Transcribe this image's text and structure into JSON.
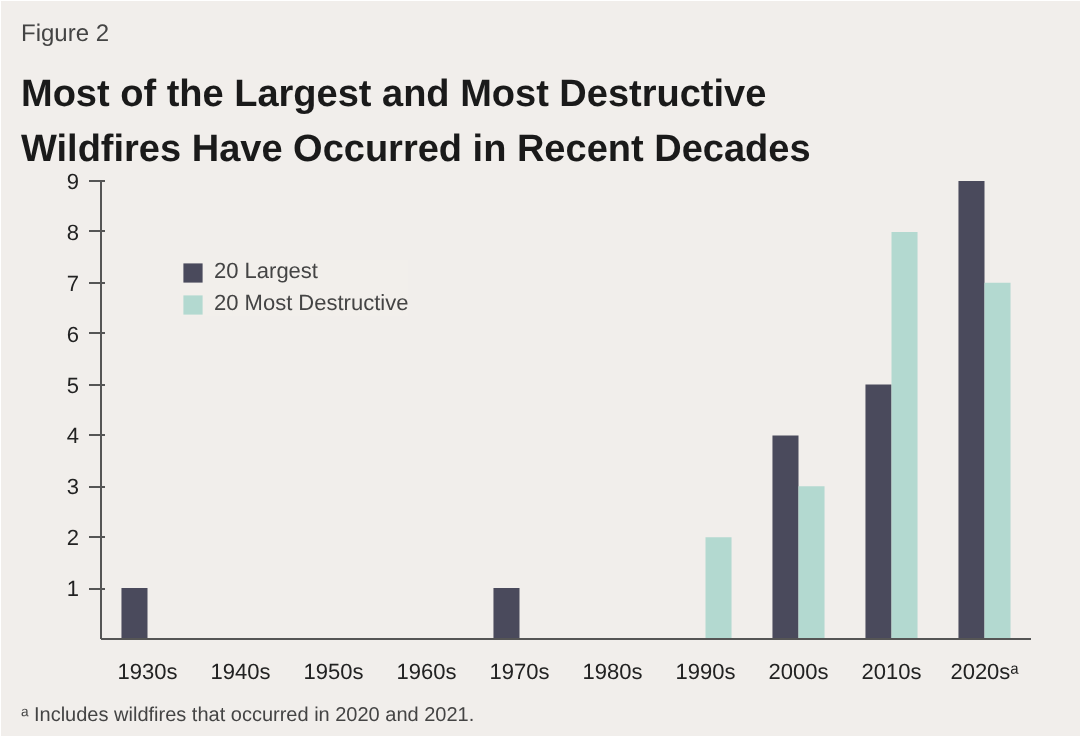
{
  "chart_data": {
    "type": "bar",
    "title": "Most of the Largest and Most Destructive Wildfires Have Occurred in Recent Decades",
    "categories": [
      "1930s",
      "1940s",
      "1950s",
      "1960s",
      "1970s",
      "1980s",
      "1990s",
      "2000s",
      "2010s",
      "2020sᵃ"
    ],
    "series": [
      {
        "name": "20 Largest",
        "color": "#4a4a5c",
        "values": [
          1,
          0,
          0,
          0,
          1,
          0,
          0,
          4,
          5,
          9
        ]
      },
      {
        "name": "20 Most Destructive",
        "color": "#b3d9d0",
        "values": [
          0,
          0,
          0,
          0,
          0,
          0,
          2,
          3,
          8,
          7
        ]
      }
    ],
    "ylim": [
      0,
      9
    ],
    "yticks": [
      1,
      2,
      3,
      4,
      5,
      6,
      7,
      8,
      9
    ],
    "grid": false,
    "legend": "top left",
    "annotations": [
      "Figure 2",
      "ᵃ Includes wildfires that occurred in 2020 and 2021."
    ]
  }
}
